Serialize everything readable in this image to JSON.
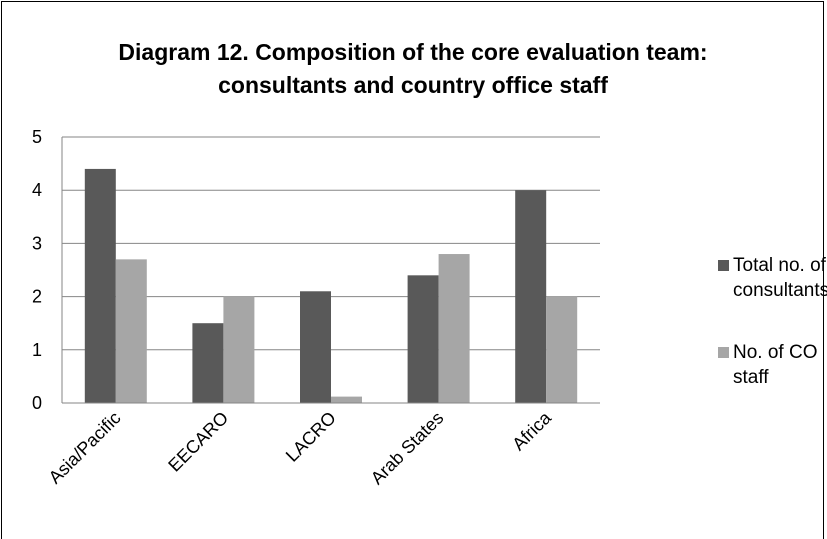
{
  "chart_data": {
    "type": "bar",
    "title": "Diagram 12. Composition of the core evaluation team: consultants and country office staff",
    "categories": [
      "Asia/Pacific",
      "EECARO",
      "LACRO",
      "Arab States",
      "Africa"
    ],
    "series": [
      {
        "name": "Total no. of consultants",
        "color": "#595959",
        "values": [
          4.4,
          1.5,
          2.1,
          2.4,
          4.0
        ]
      },
      {
        "name": "No. of CO staff",
        "color": "#a6a6a6",
        "values": [
          2.7,
          2.0,
          0.12,
          2.8,
          2.0
        ]
      }
    ],
    "ylim": [
      0,
      5
    ],
    "yticks": [
      0,
      1,
      2,
      3,
      4,
      5
    ],
    "grid": true,
    "legend": "right"
  }
}
